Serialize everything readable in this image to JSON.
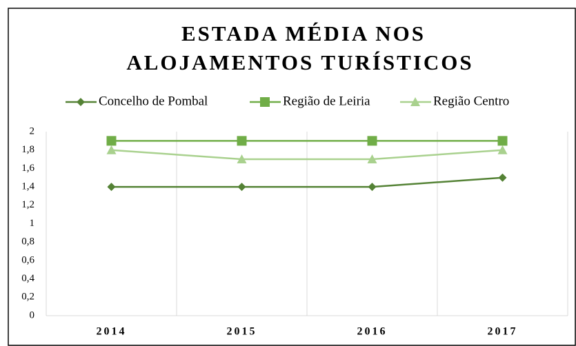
{
  "chart_data": {
    "type": "line",
    "title": [
      "ESTADA MÉDIA NOS",
      "ALOJAMENTOS TURÍSTICOS"
    ],
    "categories": [
      "2014",
      "2015",
      "2016",
      "2017"
    ],
    "series": [
      {
        "name": "Concelho de Pombal",
        "color": "#548235",
        "marker": "diamond",
        "values": [
          1.4,
          1.4,
          1.4,
          1.5
        ]
      },
      {
        "name": "Região de Leiria",
        "color": "#70ad47",
        "marker": "square",
        "values": [
          1.9,
          1.9,
          1.9,
          1.9
        ]
      },
      {
        "name": "Região Centro",
        "color": "#a9d18e",
        "marker": "triangle",
        "values": [
          1.8,
          1.7,
          1.7,
          1.8
        ]
      }
    ],
    "ylim": [
      0,
      2
    ],
    "yticks": [
      0,
      {
        "value": 0.2,
        "label": "0,2"
      },
      {
        "value": 0.4,
        "label": "0,4"
      },
      {
        "value": 0.6,
        "label": "0,6"
      },
      {
        "value": 0.8,
        "label": "0,8"
      },
      1,
      {
        "value": 1.2,
        "label": "1,2"
      },
      {
        "value": 1.4,
        "label": "1,4"
      },
      {
        "value": 1.6,
        "label": "1,6"
      },
      {
        "value": 1.8,
        "label": "1,8"
      },
      2
    ],
    "legend": "top"
  }
}
